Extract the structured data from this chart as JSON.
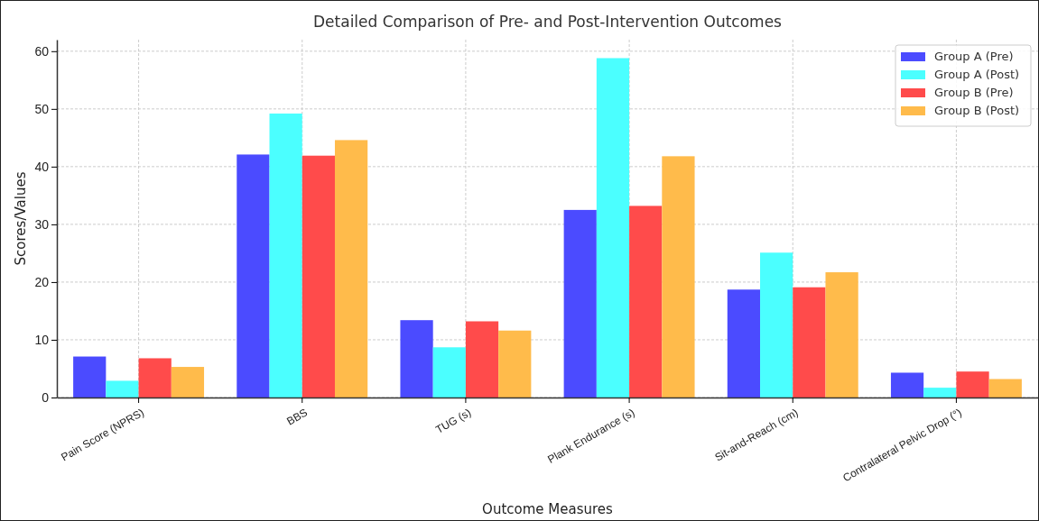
{
  "chart_data": {
    "type": "bar",
    "title": "Detailed Comparison of Pre- and Post-Intervention Outcomes",
    "xlabel": "Outcome Measures",
    "ylabel": "Scores/Values",
    "categories": [
      "Pain Score (NPRS)",
      "BBS",
      "TUG (s)",
      "Plank Endurance (s)",
      "Sit-and-Reach (cm)",
      "Contralateral Pelvic Drop (°)"
    ],
    "series": [
      {
        "name": "Group A (Pre)",
        "color": "#4b4bff",
        "values": [
          7.1,
          42.1,
          13.4,
          32.5,
          18.7,
          4.3
        ]
      },
      {
        "name": "Group A (Post)",
        "color": "#4bffff",
        "values": [
          2.9,
          49.2,
          8.7,
          58.8,
          25.1,
          1.7
        ]
      },
      {
        "name": "Group B (Pre)",
        "color": "#ff4b4b",
        "values": [
          6.8,
          41.9,
          13.2,
          33.2,
          19.1,
          4.5
        ]
      },
      {
        "name": "Group B (Post)",
        "color": "#ffbb4b",
        "values": [
          5.3,
          44.6,
          11.6,
          41.8,
          21.7,
          3.2
        ]
      }
    ],
    "ylim": [
      0,
      62
    ],
    "yticks": [
      0,
      10,
      20,
      30,
      40,
      50,
      60
    ],
    "grid": true,
    "legend": "top right"
  }
}
